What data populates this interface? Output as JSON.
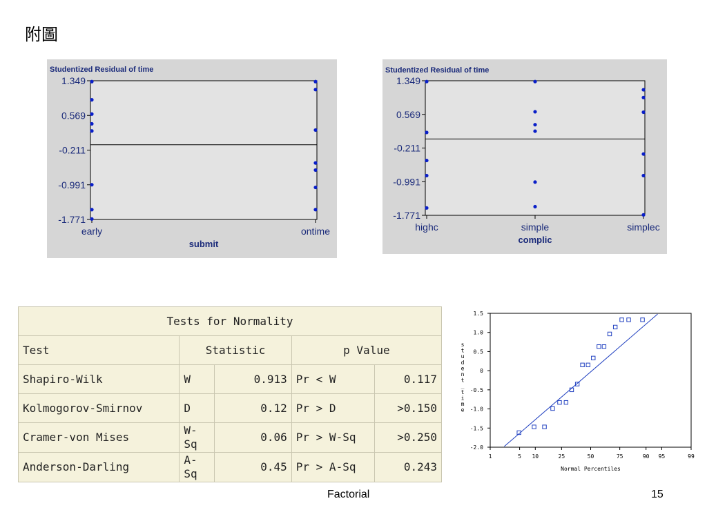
{
  "slide": {
    "title": "附圖",
    "footer": "Factorial",
    "page_number": "15"
  },
  "chart_data": [
    {
      "type": "scatter",
      "title": "Studentized Residual of time",
      "xlabel": "submit",
      "categories": [
        "early",
        "ontime"
      ],
      "yticks": [
        "1.349",
        "0.569",
        "-0.211",
        "-0.991",
        "-1.771"
      ],
      "ylim": [
        -1.771,
        1.349
      ],
      "reference_line": -0.09,
      "points": [
        {
          "x": "early",
          "y": 1.33
        },
        {
          "x": "early",
          "y": 0.92
        },
        {
          "x": "early",
          "y": 0.6
        },
        {
          "x": "early",
          "y": 0.38
        },
        {
          "x": "early",
          "y": 0.22
        },
        {
          "x": "early",
          "y": -0.99
        },
        {
          "x": "early",
          "y": -1.55
        },
        {
          "x": "early",
          "y": -1.76
        },
        {
          "x": "ontime",
          "y": 1.33
        },
        {
          "x": "ontime",
          "y": 1.15
        },
        {
          "x": "ontime",
          "y": 0.24
        },
        {
          "x": "ontime",
          "y": -0.5
        },
        {
          "x": "ontime",
          "y": -0.66
        },
        {
          "x": "ontime",
          "y": -1.05
        },
        {
          "x": "ontime",
          "y": -1.55
        }
      ]
    },
    {
      "type": "scatter",
      "title": "Studentized Residual of time",
      "xlabel": "complic",
      "categories": [
        "highc",
        "simple",
        "simplec"
      ],
      "yticks": [
        "1.349",
        "0.569",
        "-0.211",
        "-0.991",
        "-1.771"
      ],
      "ylim": [
        -1.771,
        1.349
      ],
      "reference_line": 0.0,
      "points": [
        {
          "x": "highc",
          "y": 1.33
        },
        {
          "x": "highc",
          "y": 0.15
        },
        {
          "x": "highc",
          "y": -0.5
        },
        {
          "x": "highc",
          "y": -0.85
        },
        {
          "x": "highc",
          "y": -1.6
        },
        {
          "x": "simple",
          "y": 1.33
        },
        {
          "x": "simple",
          "y": 0.63
        },
        {
          "x": "simple",
          "y": 0.33
        },
        {
          "x": "simple",
          "y": 0.18
        },
        {
          "x": "simple",
          "y": -1.0
        },
        {
          "x": "simple",
          "y": -1.57
        },
        {
          "x": "simplec",
          "y": 1.14
        },
        {
          "x": "simplec",
          "y": 0.96
        },
        {
          "x": "simplec",
          "y": 0.62
        },
        {
          "x": "simplec",
          "y": -0.35
        },
        {
          "x": "simplec",
          "y": -0.85
        },
        {
          "x": "simplec",
          "y": -1.76
        }
      ]
    },
    {
      "type": "scatter",
      "title": "",
      "xlabel": "Normal Percentiles",
      "ylabel": "student_time",
      "xticks": [
        "1",
        "5",
        "10",
        "25",
        "50",
        "75",
        "90",
        "95",
        "99"
      ],
      "yticks": [
        "1.5",
        "1.0",
        "0.5",
        "0",
        "-0.5",
        "-1.0",
        "-1.5",
        "-2.0"
      ],
      "ylim": [
        -2.0,
        1.5
      ],
      "xlim_z": [
        -2.326,
        2.326
      ],
      "fit_line": {
        "z0": -2.0,
        "y0": -1.98,
        "z1": 1.55,
        "y1": 1.48
      },
      "points": [
        {
          "z": -1.66,
          "y": -1.62
        },
        {
          "z": -1.31,
          "y": -1.47
        },
        {
          "z": -1.07,
          "y": -1.47
        },
        {
          "z": -0.88,
          "y": -0.99
        },
        {
          "z": -0.72,
          "y": -0.83
        },
        {
          "z": -0.57,
          "y": -0.83
        },
        {
          "z": -0.44,
          "y": -0.5
        },
        {
          "z": -0.31,
          "y": -0.35
        },
        {
          "z": -0.19,
          "y": 0.15
        },
        {
          "z": -0.06,
          "y": 0.15
        },
        {
          "z": 0.06,
          "y": 0.33
        },
        {
          "z": 0.19,
          "y": 0.63
        },
        {
          "z": 0.31,
          "y": 0.63
        },
        {
          "z": 0.44,
          "y": 0.96
        },
        {
          "z": 0.57,
          "y": 1.14
        },
        {
          "z": 0.72,
          "y": 1.33
        },
        {
          "z": 0.88,
          "y": 1.33
        },
        {
          "z": 1.2,
          "y": 1.33
        }
      ]
    }
  ],
  "normality_table": {
    "title": "Tests for Normality",
    "headers": {
      "test": "Test",
      "statistic": "Statistic",
      "pvalue": "p Value"
    },
    "rows": [
      {
        "test": "Shapiro-Wilk",
        "stat_name": "W",
        "stat": "0.913",
        "p_name": "Pr < W",
        "p": "0.117"
      },
      {
        "test": "Kolmogorov-Smirnov",
        "stat_name": "D",
        "stat": "0.12",
        "p_name": "Pr > D",
        "p": ">0.150"
      },
      {
        "test": "Cramer-von Mises",
        "stat_name": "W-Sq",
        "stat": "0.06",
        "p_name": "Pr > W-Sq",
        "p": ">0.250"
      },
      {
        "test": "Anderson-Darling",
        "stat_name": "A-Sq",
        "stat": "0.45",
        "p_name": "Pr > A-Sq",
        "p": "0.243"
      }
    ]
  }
}
